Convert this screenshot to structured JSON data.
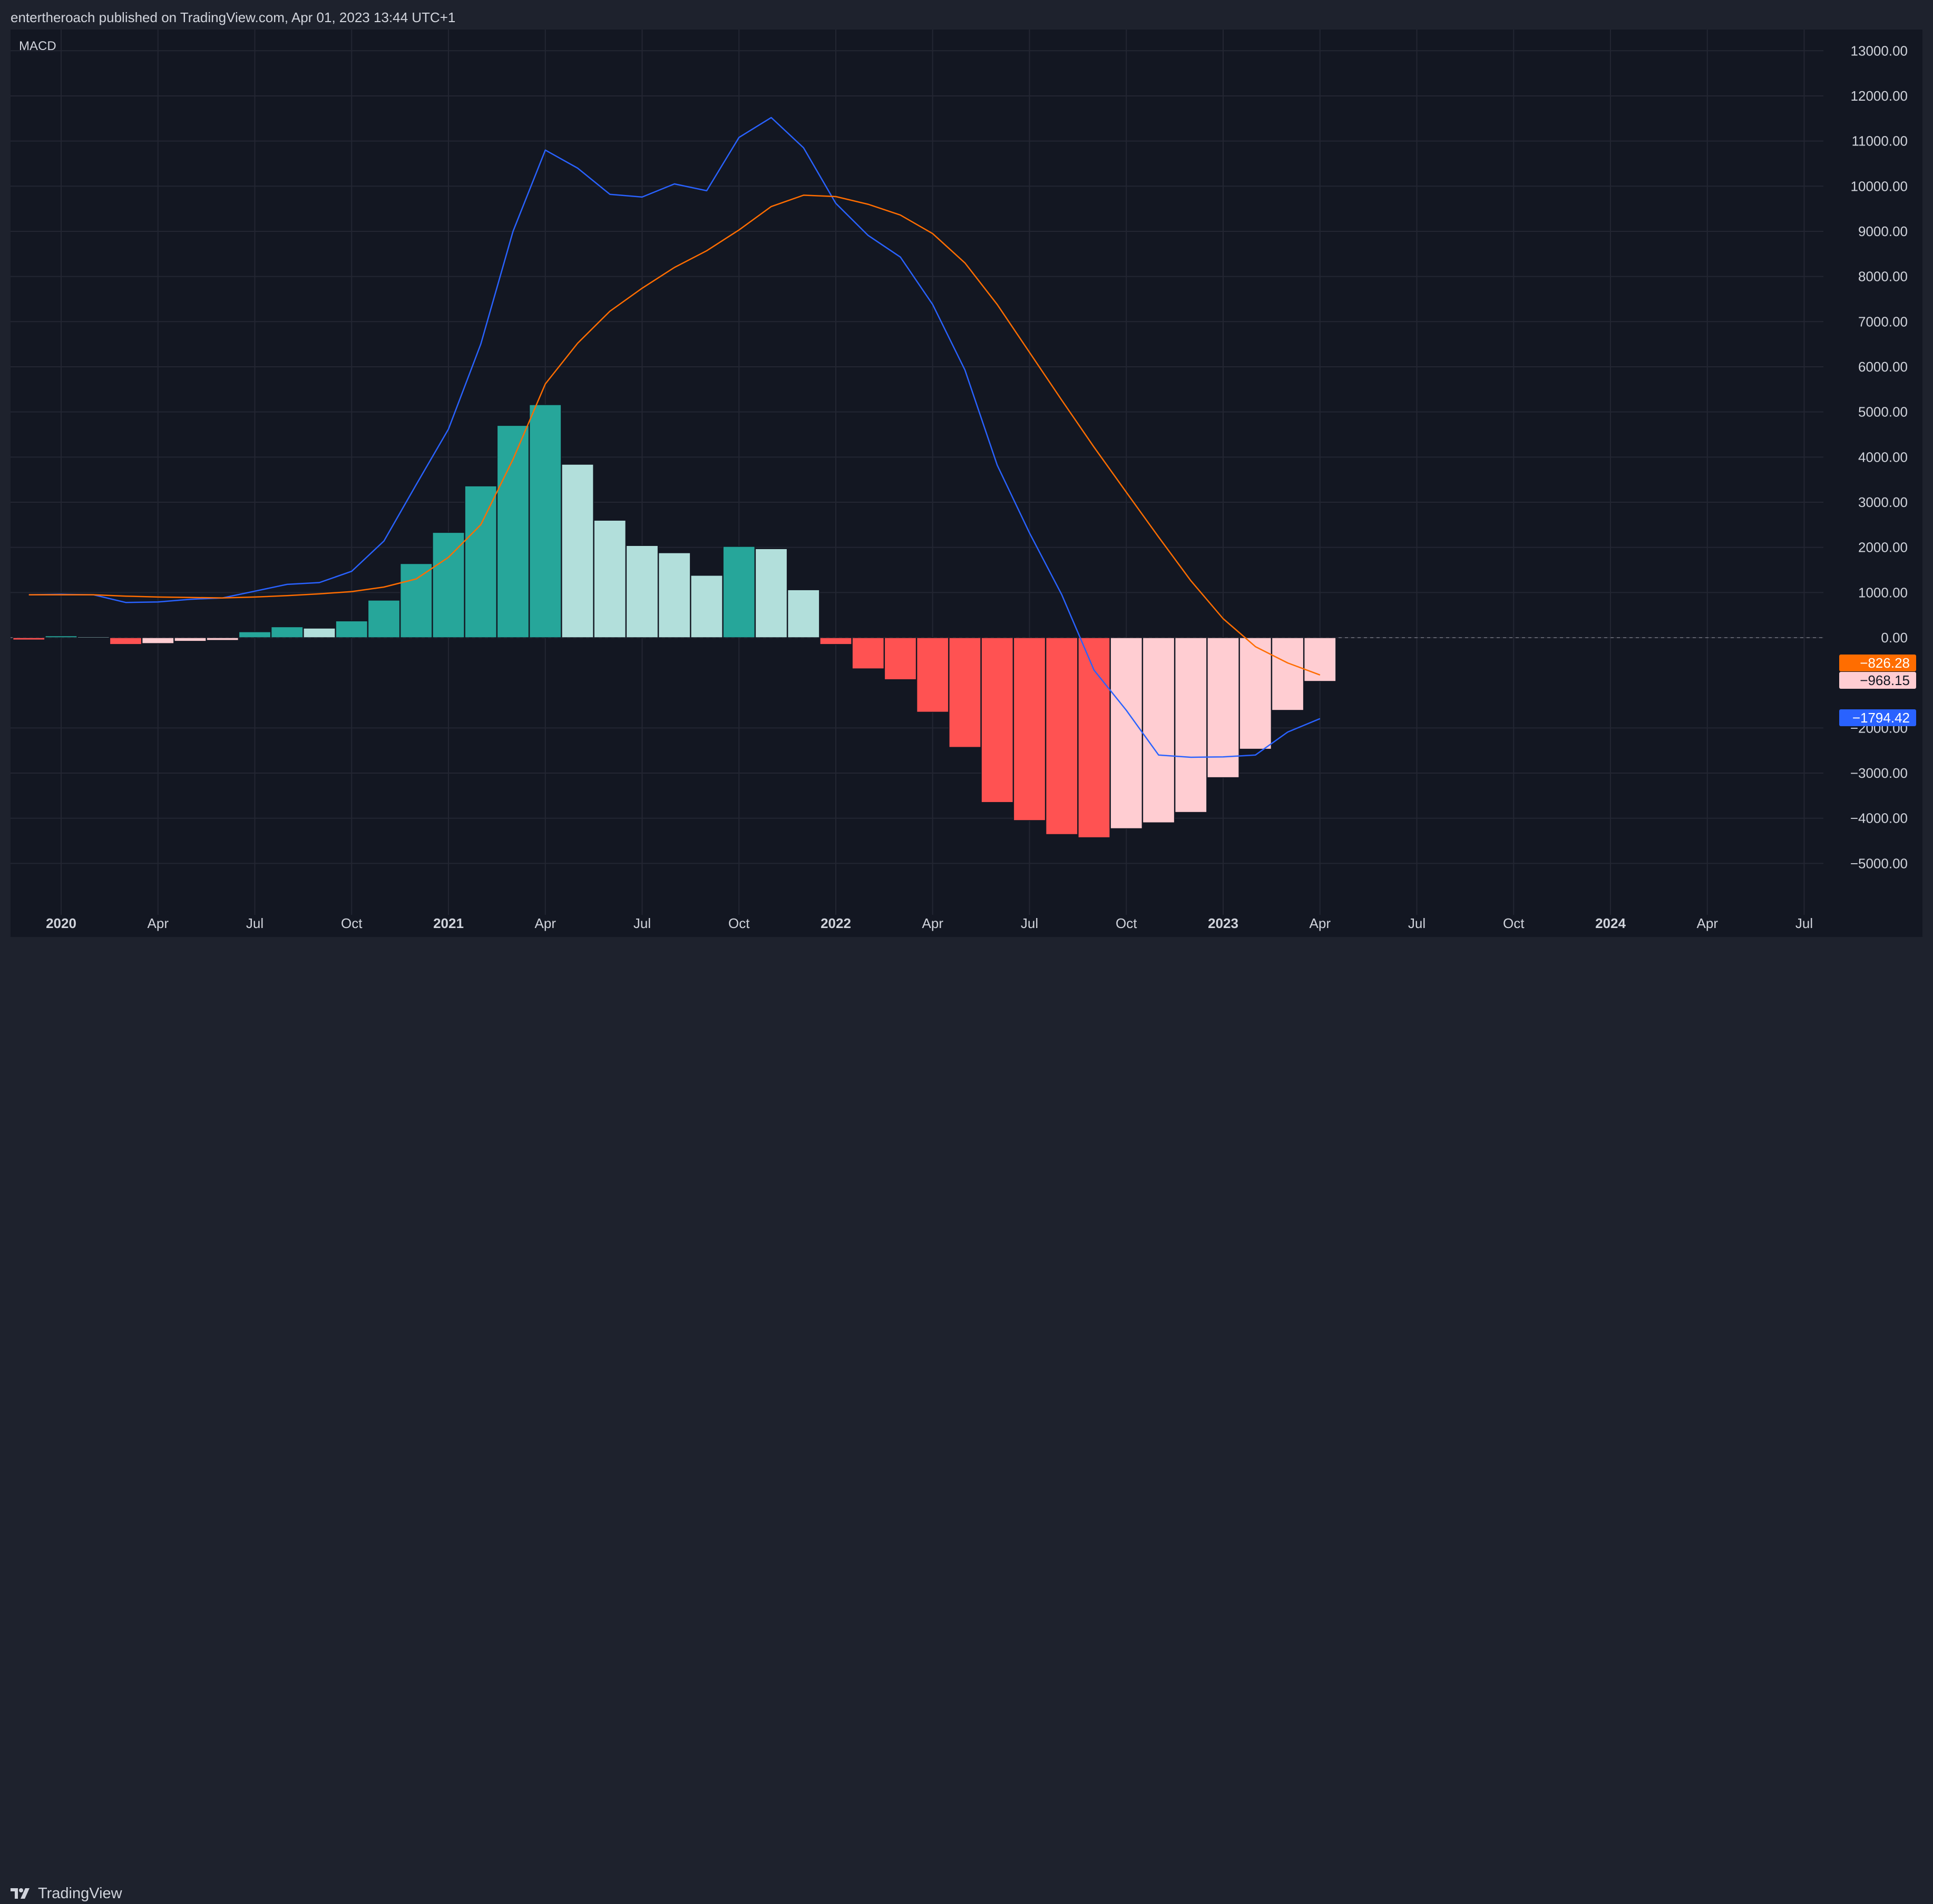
{
  "header": {
    "byline": "entertheroach published on TradingView.com, Apr 01, 2023 13:44 UTC+1"
  },
  "footer": {
    "brand": "TradingView",
    "logo_icon": "tradingview-logo-icon"
  },
  "colors": {
    "page_bg": "#1e222d",
    "panel_bg": "#131722",
    "grid": "#232632",
    "text": "#d1d4dc",
    "macd_line": "#2962ff",
    "signal_line": "#ff6d00",
    "hist_pos_strong": "#26a69a",
    "hist_pos_weak": "#b2dfdb",
    "hist_neg_strong": "#ff5252",
    "hist_neg_weak": "#ffcdd2"
  },
  "chart_data": {
    "type": "bar",
    "title": "MACD",
    "x_tick_labels": [
      "2020",
      "Apr",
      "Jul",
      "Oct",
      "2021",
      "Apr",
      "Jul",
      "Oct",
      "2022",
      "Apr",
      "Jul",
      "Oct",
      "2023",
      "Apr",
      "Jul",
      "Oct",
      "2024",
      "Apr",
      "Jul"
    ],
    "y_tick_labels": [
      "13000.00",
      "12000.00",
      "11000.00",
      "10000.00",
      "9000.00",
      "8000.00",
      "7000.00",
      "6000.00",
      "5000.00",
      "4000.00",
      "3000.00",
      "2000.00",
      "1000.00",
      "0.00",
      "−2000.00",
      "−3000.00",
      "−4000.00",
      "−5000.00"
    ],
    "ylim": [
      -5500,
      13500
    ],
    "grid": true,
    "categories": [
      "2019-12",
      "2020-01",
      "2020-02",
      "2020-03",
      "2020-04",
      "2020-05",
      "2020-06",
      "2020-07",
      "2020-08",
      "2020-09",
      "2020-10",
      "2020-11",
      "2020-12",
      "2021-01",
      "2021-02",
      "2021-03",
      "2021-04",
      "2021-05",
      "2021-06",
      "2021-07",
      "2021-08",
      "2021-09",
      "2021-10",
      "2021-11",
      "2021-12",
      "2022-01",
      "2022-02",
      "2022-03",
      "2022-04",
      "2022-05",
      "2022-06",
      "2022-07",
      "2022-08",
      "2022-09",
      "2022-10",
      "2022-11",
      "2022-12",
      "2023-01",
      "2023-02",
      "2023-03",
      "2023-04"
    ],
    "series": [
      {
        "kind": "histogram",
        "values": [
          -50,
          40,
          20,
          -150,
          -130,
          -80,
          -60,
          130,
          240,
          210,
          370,
          830,
          1640,
          2330,
          3360,
          4700,
          5160,
          3840,
          2600,
          2040,
          1880,
          1380,
          2020,
          1970,
          1060,
          -150,
          -690,
          -930,
          -1650,
          -2430,
          -3650,
          -4050,
          -4360,
          -4430,
          -4230,
          -4100,
          -3870,
          -3100,
          -2470,
          -1610,
          -968.15
        ],
        "shades": [
          "strong",
          "strong",
          "weak",
          "strong",
          "weak",
          "weak",
          "weak",
          "strong",
          "strong",
          "weak",
          "strong",
          "strong",
          "strong",
          "strong",
          "strong",
          "strong",
          "strong",
          "weak",
          "weak",
          "weak",
          "weak",
          "weak",
          "strong",
          "weak",
          "weak",
          "strong",
          "strong",
          "strong",
          "strong",
          "strong",
          "strong",
          "strong",
          "strong",
          "strong",
          "weak",
          "weak",
          "weak",
          "weak",
          "weak",
          "weak",
          "weak"
        ]
      },
      {
        "kind": "line",
        "values": [
          950,
          960,
          950,
          780,
          790,
          850,
          880,
          1030,
          1180,
          1220,
          1470,
          2140,
          3390,
          4620,
          6500,
          9000,
          10800,
          10400,
          9820,
          9760,
          10050,
          9900,
          11080,
          11520,
          10850,
          9620,
          8910,
          8430,
          7380,
          5930,
          3820,
          2320,
          950,
          -720,
          -1610,
          -2600,
          -2650,
          -2640,
          -2600,
          -2090,
          -1794.42
        ]
      },
      {
        "kind": "line",
        "values": [
          950,
          950,
          950,
          920,
          900,
          890,
          880,
          900,
          930,
          970,
          1020,
          1120,
          1300,
          1780,
          2500,
          3950,
          5620,
          6520,
          7230,
          7740,
          8200,
          8570,
          9030,
          9550,
          9800,
          9770,
          9600,
          9360,
          8950,
          8300,
          7380,
          6320,
          5260,
          4220,
          3220,
          2230,
          1260,
          420,
          -200,
          -560,
          -826.28
        ]
      }
    ],
    "last_value_labels": [
      {
        "text": "−826.28",
        "bg": "#ff6d00",
        "fg": "#ffffff",
        "value": -826.28
      },
      {
        "text": "−968.15",
        "bg": "#ffcdd2",
        "fg": "#131722",
        "value": -968.15
      },
      {
        "text": "−1794.42",
        "bg": "#2962ff",
        "fg": "#ffffff",
        "value": -1794.42
      }
    ]
  }
}
